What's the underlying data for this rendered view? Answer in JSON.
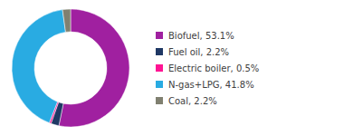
{
  "chart_data": {
    "type": "pie",
    "categories": [
      "Biofuel, 53.1%",
      "Fuel oil, 2.2%",
      "Electric boiler, 0.5%",
      "N-gas+LPG, 41.8%",
      "Coal, 2.2%"
    ],
    "values": [
      53.1,
      2.2,
      0.5,
      41.8,
      2.2
    ],
    "colors": [
      "#A020A0",
      "#1F3864",
      "#FF1493",
      "#29ABE2",
      "#808070"
    ],
    "legend": "right"
  }
}
